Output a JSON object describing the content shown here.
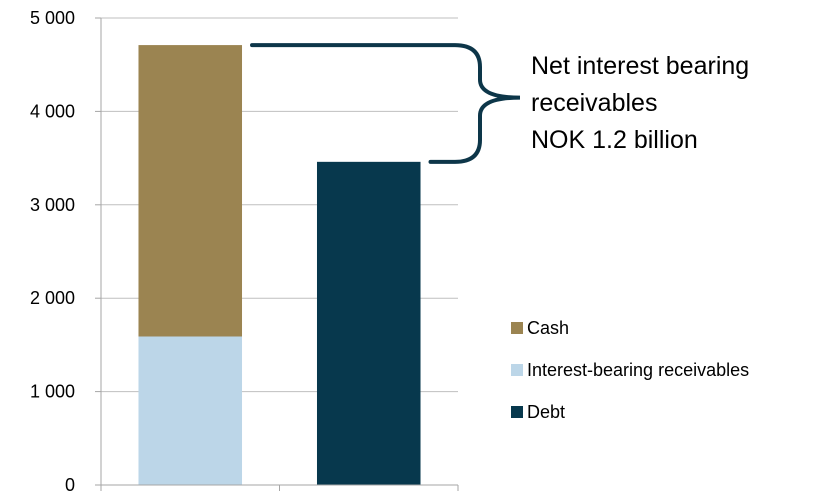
{
  "chart_data": {
    "type": "bar",
    "stacked": true,
    "categories": [
      "",
      ""
    ],
    "series": [
      {
        "name": "Interest-bearing receivables",
        "values": [
          1590,
          0
        ],
        "color": "#bcd6e8"
      },
      {
        "name": "Cash",
        "values": [
          3120,
          0
        ],
        "color": "#9b8451"
      },
      {
        "name": "Debt",
        "values": [
          0,
          3460
        ],
        "color": "#07384d"
      }
    ],
    "ylim": [
      0,
      5000
    ],
    "yticks": [
      0,
      1000,
      2000,
      3000,
      4000,
      5000
    ],
    "ytick_labels": [
      "0",
      "1 000",
      "2 000",
      "3 000",
      "4 000",
      "5 000"
    ],
    "grid": true,
    "legend_order": [
      "Cash",
      "Interest-bearing receivables",
      "Debt"
    ],
    "legend_position": "right",
    "annotation": {
      "lines": [
        "Net interest bearing",
        "receivables",
        "NOK 1.2 billion"
      ],
      "bracket_color": "#0d3649"
    }
  }
}
